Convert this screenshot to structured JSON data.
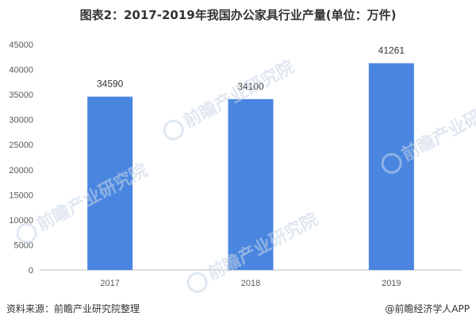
{
  "title": "图表2：2017-2019年我国办公家具行业产量(单位：万件)",
  "chart_data": {
    "type": "bar",
    "categories": [
      "2017",
      "2018",
      "2019"
    ],
    "values": [
      34590,
      34100,
      41261
    ],
    "data_labels": [
      "34590",
      "34100",
      "41261"
    ],
    "ylim": [
      0,
      45000
    ],
    "yticks": [
      0,
      5000,
      10000,
      15000,
      20000,
      25000,
      30000,
      35000,
      40000,
      45000
    ],
    "bar_color": "#4a86e0",
    "grid": false,
    "legend": "none"
  },
  "footer": {
    "source": "资料来源：前瞻产业研究院整理",
    "brand": "@前瞻经济学人APP"
  },
  "watermark": {
    "text": "前瞻产业研究院"
  }
}
